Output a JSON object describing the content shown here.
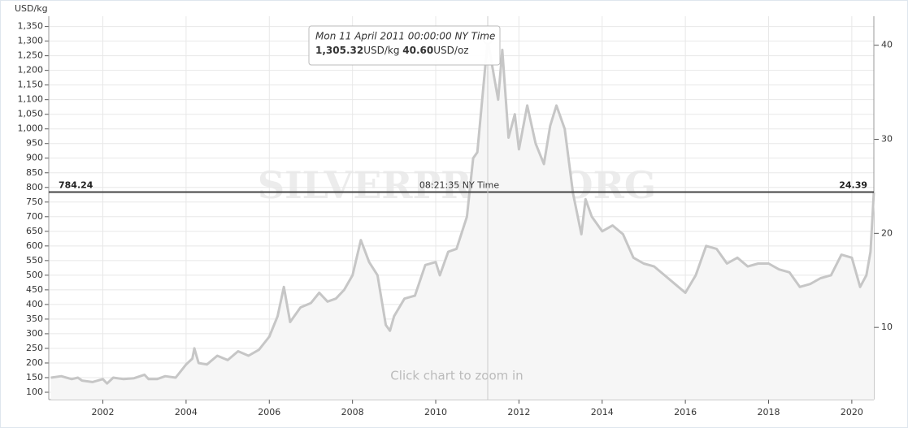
{
  "chart_data": {
    "type": "area-line",
    "y_label": "USD/kg",
    "watermark": "SILVERPRICE.ORG",
    "hint": "Click chart to zoom in",
    "color": "#c6c6c6",
    "fill": "#f6f6f6",
    "grid": true,
    "x": [
      2000.75,
      2001.0,
      2001.25,
      2001.4,
      2001.5,
      2001.75,
      2002.0,
      2002.1,
      2002.25,
      2002.5,
      2002.75,
      2003.0,
      2003.1,
      2003.3,
      2003.5,
      2003.75,
      2004.0,
      2004.15,
      2004.2,
      2004.3,
      2004.5,
      2004.75,
      2005.0,
      2005.25,
      2005.5,
      2005.75,
      2006.0,
      2006.2,
      2006.35,
      2006.5,
      2006.75,
      2007.0,
      2007.2,
      2007.4,
      2007.6,
      2007.8,
      2008.0,
      2008.2,
      2008.4,
      2008.6,
      2008.8,
      2008.9,
      2009.0,
      2009.25,
      2009.5,
      2009.75,
      2010.0,
      2010.1,
      2010.3,
      2010.5,
      2010.75,
      2010.9,
      2011.0,
      2011.25,
      2011.4,
      2011.5,
      2011.6,
      2011.75,
      2011.9,
      2012.0,
      2012.2,
      2012.4,
      2012.6,
      2012.75,
      2012.9,
      2013.1,
      2013.3,
      2013.5,
      2013.6,
      2013.75,
      2014.0,
      2014.25,
      2014.5,
      2014.75,
      2015.0,
      2015.25,
      2015.5,
      2015.75,
      2016.0,
      2016.25,
      2016.5,
      2016.75,
      2017.0,
      2017.25,
      2017.5,
      2017.75,
      2018.0,
      2018.25,
      2018.5,
      2018.75,
      2019.0,
      2019.25,
      2019.5,
      2019.75,
      2020.0,
      2020.2,
      2020.35,
      2020.45,
      2020.53
    ],
    "values": [
      150,
      155,
      145,
      150,
      140,
      135,
      145,
      130,
      150,
      145,
      148,
      160,
      145,
      145,
      155,
      150,
      195,
      215,
      250,
      200,
      195,
      225,
      210,
      240,
      225,
      245,
      290,
      360,
      460,
      340,
      390,
      405,
      440,
      410,
      420,
      450,
      500,
      620,
      545,
      500,
      330,
      310,
      360,
      420,
      430,
      535,
      545,
      500,
      580,
      590,
      700,
      900,
      920,
      1305,
      1180,
      1100,
      1270,
      970,
      1050,
      930,
      1080,
      950,
      880,
      1010,
      1080,
      1000,
      780,
      640,
      760,
      700,
      650,
      670,
      640,
      560,
      540,
      530,
      500,
      470,
      440,
      500,
      600,
      590,
      540,
      560,
      530,
      540,
      540,
      520,
      510,
      460,
      470,
      490,
      500,
      570,
      560,
      460,
      500,
      580,
      784.24
    ],
    "xlim": [
      2000.7,
      2020.53
    ],
    "xticks": [
      2002,
      2004,
      2006,
      2008,
      2010,
      2012,
      2014,
      2016,
      2018,
      2020
    ],
    "ylim": [
      75,
      1385
    ],
    "yticks": [
      100,
      150,
      200,
      250,
      300,
      350,
      400,
      450,
      500,
      550,
      600,
      650,
      700,
      750,
      800,
      850,
      900,
      950,
      {
        "value": 1000,
        "label": "1,000"
      },
      {
        "value": 1050,
        "label": "1,050"
      },
      {
        "value": 1100,
        "label": "1,100"
      },
      {
        "value": 1150,
        "label": "1,150"
      },
      {
        "value": 1200,
        "label": "1,200"
      },
      {
        "value": 1250,
        "label": "1,250"
      },
      {
        "value": 1300,
        "label": "1,300"
      },
      {
        "value": 1350,
        "label": "1,350"
      }
    ],
    "y2lim": [
      2.33,
      43.08
    ],
    "y2ticks": [
      10,
      20,
      30,
      40
    ],
    "current": {
      "value": 784.24,
      "time": "08:21:35 NY Time",
      "oz_value": 24.39
    },
    "tooltip": {
      "date": "Mon 11 April 2011 00:00:00 NY Time",
      "value": {
        "value": 1305.32,
        "label": "1,305.32"
      },
      "unit": "USD/kg",
      "oz_value": {
        "value": 40.6,
        "label": "40.60"
      },
      "oz_unit": "USD/oz"
    }
  }
}
